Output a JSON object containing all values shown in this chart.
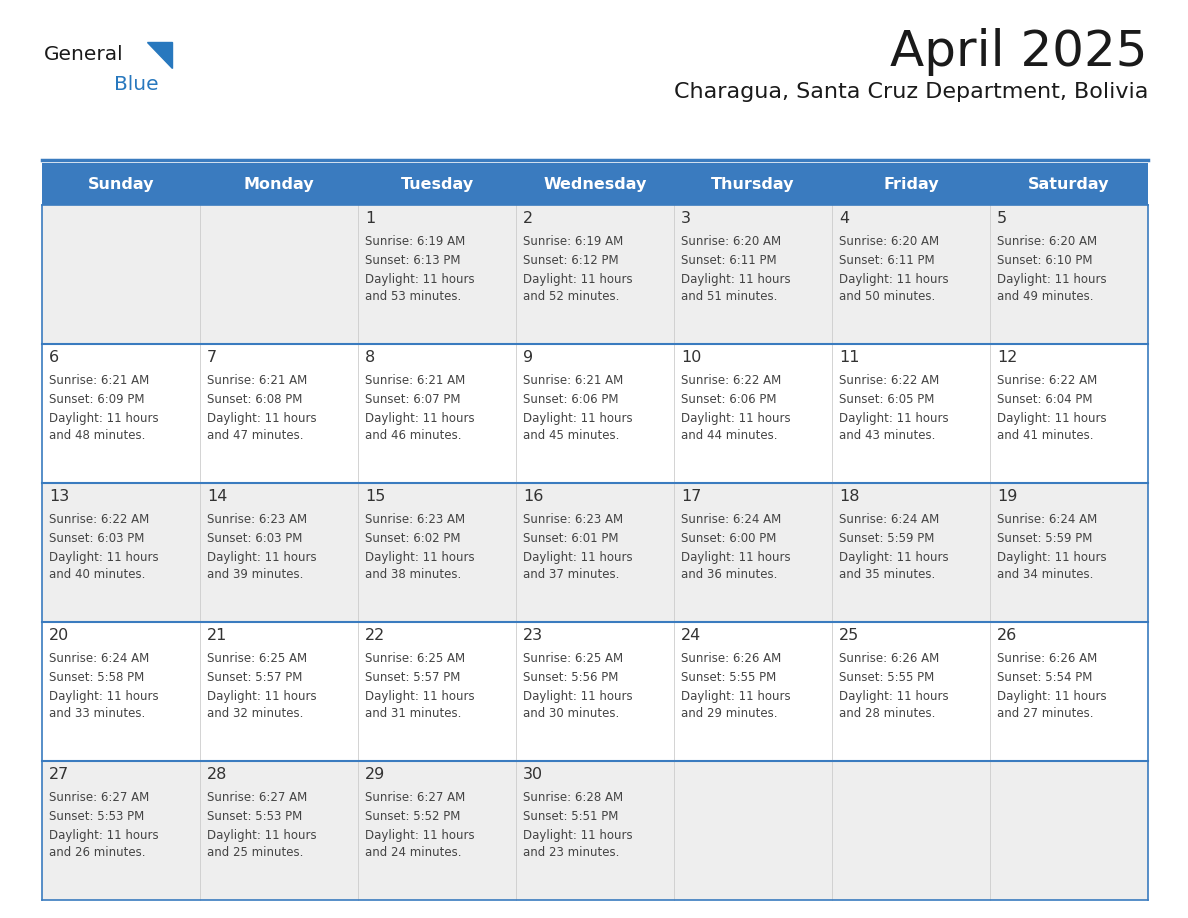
{
  "title": "April 2025",
  "subtitle": "Charagua, Santa Cruz Department, Bolivia",
  "header_bg_color": "#3a7bbf",
  "header_text_color": "#FFFFFF",
  "days_of_week": [
    "Sunday",
    "Monday",
    "Tuesday",
    "Wednesday",
    "Thursday",
    "Friday",
    "Saturday"
  ],
  "title_color": "#1a1a1a",
  "subtitle_color": "#1a1a1a",
  "cell_bg_odd": "#eeeeee",
  "cell_bg_even": "#ffffff",
  "cell_border_color": "#3a7bbf",
  "day_num_color": "#333333",
  "text_color": "#444444",
  "logo_blue": "#2878be",
  "logo_black": "#1a1a1a",
  "weeks": [
    [
      {
        "date": "",
        "sunrise": "",
        "sunset": "",
        "daylight_h": "",
        "daylight_m": ""
      },
      {
        "date": "",
        "sunrise": "",
        "sunset": "",
        "daylight_h": "",
        "daylight_m": ""
      },
      {
        "date": "1",
        "sunrise": "6:19 AM",
        "sunset": "6:13 PM",
        "daylight_h": "11 hours",
        "daylight_m": "53 minutes."
      },
      {
        "date": "2",
        "sunrise": "6:19 AM",
        "sunset": "6:12 PM",
        "daylight_h": "11 hours",
        "daylight_m": "52 minutes."
      },
      {
        "date": "3",
        "sunrise": "6:20 AM",
        "sunset": "6:11 PM",
        "daylight_h": "11 hours",
        "daylight_m": "51 minutes."
      },
      {
        "date": "4",
        "sunrise": "6:20 AM",
        "sunset": "6:11 PM",
        "daylight_h": "11 hours",
        "daylight_m": "50 minutes."
      },
      {
        "date": "5",
        "sunrise": "6:20 AM",
        "sunset": "6:10 PM",
        "daylight_h": "11 hours",
        "daylight_m": "49 minutes."
      }
    ],
    [
      {
        "date": "6",
        "sunrise": "6:21 AM",
        "sunset": "6:09 PM",
        "daylight_h": "11 hours",
        "daylight_m": "48 minutes."
      },
      {
        "date": "7",
        "sunrise": "6:21 AM",
        "sunset": "6:08 PM",
        "daylight_h": "11 hours",
        "daylight_m": "47 minutes."
      },
      {
        "date": "8",
        "sunrise": "6:21 AM",
        "sunset": "6:07 PM",
        "daylight_h": "11 hours",
        "daylight_m": "46 minutes."
      },
      {
        "date": "9",
        "sunrise": "6:21 AM",
        "sunset": "6:06 PM",
        "daylight_h": "11 hours",
        "daylight_m": "45 minutes."
      },
      {
        "date": "10",
        "sunrise": "6:22 AM",
        "sunset": "6:06 PM",
        "daylight_h": "11 hours",
        "daylight_m": "44 minutes."
      },
      {
        "date": "11",
        "sunrise": "6:22 AM",
        "sunset": "6:05 PM",
        "daylight_h": "11 hours",
        "daylight_m": "43 minutes."
      },
      {
        "date": "12",
        "sunrise": "6:22 AM",
        "sunset": "6:04 PM",
        "daylight_h": "11 hours",
        "daylight_m": "41 minutes."
      }
    ],
    [
      {
        "date": "13",
        "sunrise": "6:22 AM",
        "sunset": "6:03 PM",
        "daylight_h": "11 hours",
        "daylight_m": "40 minutes."
      },
      {
        "date": "14",
        "sunrise": "6:23 AM",
        "sunset": "6:03 PM",
        "daylight_h": "11 hours",
        "daylight_m": "39 minutes."
      },
      {
        "date": "15",
        "sunrise": "6:23 AM",
        "sunset": "6:02 PM",
        "daylight_h": "11 hours",
        "daylight_m": "38 minutes."
      },
      {
        "date": "16",
        "sunrise": "6:23 AM",
        "sunset": "6:01 PM",
        "daylight_h": "11 hours",
        "daylight_m": "37 minutes."
      },
      {
        "date": "17",
        "sunrise": "6:24 AM",
        "sunset": "6:00 PM",
        "daylight_h": "11 hours",
        "daylight_m": "36 minutes."
      },
      {
        "date": "18",
        "sunrise": "6:24 AM",
        "sunset": "5:59 PM",
        "daylight_h": "11 hours",
        "daylight_m": "35 minutes."
      },
      {
        "date": "19",
        "sunrise": "6:24 AM",
        "sunset": "5:59 PM",
        "daylight_h": "11 hours",
        "daylight_m": "34 minutes."
      }
    ],
    [
      {
        "date": "20",
        "sunrise": "6:24 AM",
        "sunset": "5:58 PM",
        "daylight_h": "11 hours",
        "daylight_m": "33 minutes."
      },
      {
        "date": "21",
        "sunrise": "6:25 AM",
        "sunset": "5:57 PM",
        "daylight_h": "11 hours",
        "daylight_m": "32 minutes."
      },
      {
        "date": "22",
        "sunrise": "6:25 AM",
        "sunset": "5:57 PM",
        "daylight_h": "11 hours",
        "daylight_m": "31 minutes."
      },
      {
        "date": "23",
        "sunrise": "6:25 AM",
        "sunset": "5:56 PM",
        "daylight_h": "11 hours",
        "daylight_m": "30 minutes."
      },
      {
        "date": "24",
        "sunrise": "6:26 AM",
        "sunset": "5:55 PM",
        "daylight_h": "11 hours",
        "daylight_m": "29 minutes."
      },
      {
        "date": "25",
        "sunrise": "6:26 AM",
        "sunset": "5:55 PM",
        "daylight_h": "11 hours",
        "daylight_m": "28 minutes."
      },
      {
        "date": "26",
        "sunrise": "6:26 AM",
        "sunset": "5:54 PM",
        "daylight_h": "11 hours",
        "daylight_m": "27 minutes."
      }
    ],
    [
      {
        "date": "27",
        "sunrise": "6:27 AM",
        "sunset": "5:53 PM",
        "daylight_h": "11 hours",
        "daylight_m": "26 minutes."
      },
      {
        "date": "28",
        "sunrise": "6:27 AM",
        "sunset": "5:53 PM",
        "daylight_h": "11 hours",
        "daylight_m": "25 minutes."
      },
      {
        "date": "29",
        "sunrise": "6:27 AM",
        "sunset": "5:52 PM",
        "daylight_h": "11 hours",
        "daylight_m": "24 minutes."
      },
      {
        "date": "30",
        "sunrise": "6:28 AM",
        "sunset": "5:51 PM",
        "daylight_h": "11 hours",
        "daylight_m": "23 minutes."
      },
      {
        "date": "",
        "sunrise": "",
        "sunset": "",
        "daylight_h": "",
        "daylight_m": ""
      },
      {
        "date": "",
        "sunrise": "",
        "sunset": "",
        "daylight_h": "",
        "daylight_m": ""
      },
      {
        "date": "",
        "sunrise": "",
        "sunset": "",
        "daylight_h": "",
        "daylight_m": ""
      }
    ]
  ]
}
